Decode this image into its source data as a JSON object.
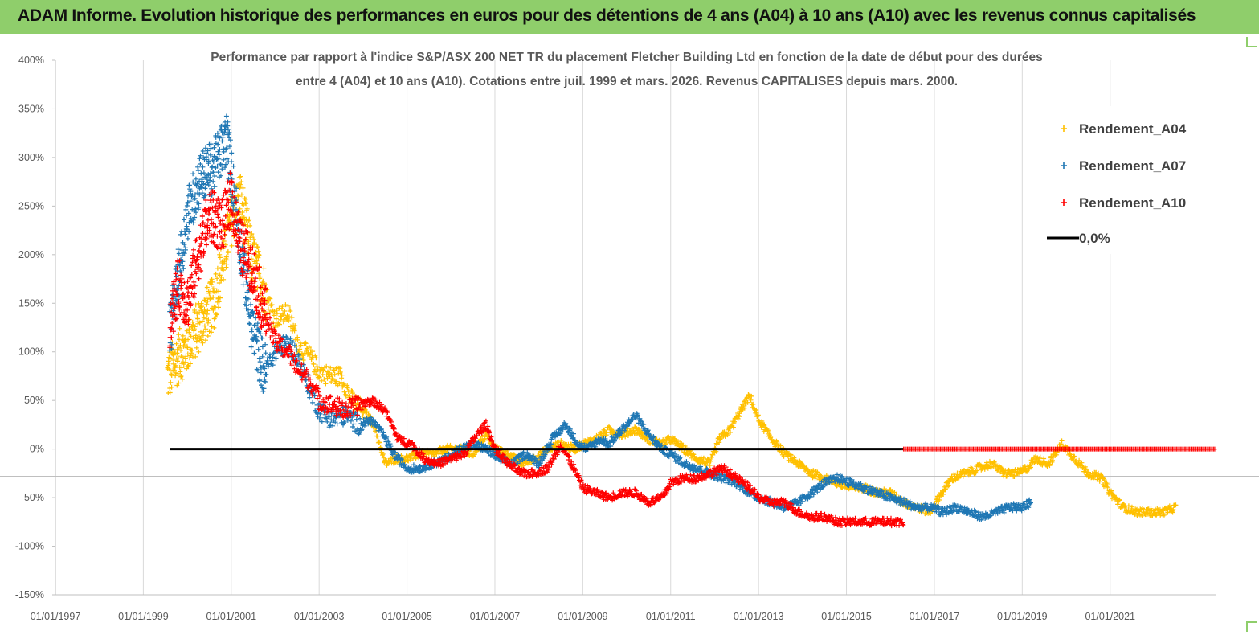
{
  "header": {
    "title": "ADAM Informe. Evolution historique des performances en euros pour des détentions de 4 ans (A04) à 10 ans (A10) avec les revenus connus capitalisés"
  },
  "colors": {
    "banner": "#8fce6b",
    "a04": "#ffc000",
    "a07": "#1f77b4",
    "a10": "#ff0000",
    "zero": "#000000"
  },
  "chart_data": {
    "type": "scatter",
    "title_lines": [
      "Performance par rapport à l'indice S&P/ASX 200 NET TR  du placement Fletcher Building Ltd en fonction de la date de début pour des durées",
      "entre 4 (A04) et 10 ans (A10). Cotations entre juil. 1999 et mars. 2026. Revenus CAPITALISES depuis mars. 2000."
    ],
    "x_ticks": [
      "01/01/1997",
      "01/01/1999",
      "01/01/2001",
      "01/01/2003",
      "01/01/2005",
      "01/01/2007",
      "01/01/2009",
      "01/01/2011",
      "01/01/2013",
      "01/01/2015",
      "01/01/2017",
      "01/01/2019",
      "01/01/2021"
    ],
    "x_range": [
      1997.0,
      2023.4
    ],
    "y_ticks": [
      "400%",
      "350%",
      "300%",
      "250%",
      "200%",
      "150%",
      "100%",
      "50%",
      "0%",
      "-50%",
      "-100%",
      "-150%"
    ],
    "ylim": [
      -150,
      400
    ],
    "legend": [
      {
        "key": "a04",
        "label": "Rendement_A04",
        "marker": "+"
      },
      {
        "key": "a07",
        "label": "Rendement_A07",
        "marker": "+"
      },
      {
        "key": "a10",
        "label": "Rendement_A10",
        "marker": "+"
      },
      {
        "key": "zero",
        "label": "0,0%",
        "marker": "line"
      }
    ],
    "series": [
      {
        "key": "a04",
        "x": [
          1999.55,
          1999.8,
          2000.0,
          2000.3,
          2000.6,
          2000.85,
          2001.0,
          2001.2,
          2001.45,
          2001.7,
          2002.0,
          2002.3,
          2002.55,
          2002.8,
          2003.0,
          2003.25,
          2003.5,
          2003.75,
          2004.0,
          2004.25,
          2004.5,
          2004.75,
          2005.0,
          2005.3,
          2005.6,
          2005.9,
          2006.2,
          2006.5,
          2006.8,
          2007.0,
          2007.3,
          2007.6,
          2007.9,
          2008.2,
          2008.5,
          2008.8,
          2009.0,
          2009.3,
          2009.6,
          2009.9,
          2010.2,
          2010.5,
          2010.8,
          2011.0,
          2011.3,
          2011.6,
          2011.9,
          2012.1,
          2012.35,
          2012.6,
          2012.8,
          2013.0,
          2013.3,
          2013.6,
          2013.9,
          2014.2,
          2014.5,
          2014.8,
          2015.1,
          2015.4,
          2015.7,
          2016.0,
          2016.3,
          2016.6,
          2016.9,
          2017.1,
          2017.4,
          2017.7,
          2018.0,
          2018.3,
          2018.6,
          2018.9,
          2019.1,
          2019.3,
          2019.6,
          2019.9,
          2020.2,
          2020.5,
          2020.8,
          2021.0,
          2021.3,
          2021.6,
          2021.9,
          2022.2,
          2022.5
        ],
        "y": [
          75,
          95,
          105,
          130,
          150,
          200,
          235,
          260,
          200,
          170,
          135,
          140,
          105,
          95,
          80,
          75,
          75,
          50,
          40,
          25,
          -15,
          -10,
          -10,
          -5,
          -5,
          0,
          0,
          -5,
          15,
          0,
          -5,
          -15,
          -10,
          0,
          5,
          0,
          5,
          10,
          20,
          15,
          20,
          10,
          5,
          10,
          0,
          -10,
          -15,
          10,
          20,
          40,
          55,
          30,
          10,
          -5,
          -15,
          -25,
          -30,
          -35,
          -40,
          -40,
          -45,
          -45,
          -55,
          -60,
          -65,
          -50,
          -30,
          -25,
          -20,
          -15,
          -25,
          -25,
          -20,
          -10,
          -15,
          5,
          -10,
          -25,
          -30,
          -45,
          -60,
          -65,
          -65,
          -65,
          -60
        ]
      },
      {
        "key": "a07",
        "x": [
          1999.6,
          1999.8,
          2000.0,
          2000.3,
          2000.6,
          2000.9,
          2001.1,
          2001.3,
          2001.5,
          2001.75,
          2002.0,
          2002.3,
          2002.55,
          2002.8,
          2003.0,
          2003.3,
          2003.6,
          2003.9,
          2004.2,
          2004.45,
          2004.7,
          2005.0,
          2005.3,
          2005.6,
          2005.9,
          2006.2,
          2006.5,
          2006.8,
          2007.1,
          2007.4,
          2007.7,
          2008.0,
          2008.3,
          2008.6,
          2008.9,
          2009.1,
          2009.4,
          2009.6,
          2009.9,
          2010.2,
          2010.5,
          2010.8,
          2011.0,
          2011.3,
          2011.6,
          2011.9,
          2012.2,
          2012.5,
          2012.8,
          2013.0,
          2013.3,
          2013.6,
          2013.9,
          2014.2,
          2014.5,
          2014.8,
          2015.1,
          2015.4,
          2015.7,
          2016.0,
          2016.3,
          2016.6,
          2016.9,
          2017.2,
          2017.5,
          2017.8,
          2018.1,
          2018.4,
          2018.7,
          2019.0,
          2019.2
        ],
        "y": [
          120,
          180,
          240,
          280,
          290,
          320,
          250,
          180,
          120,
          80,
          100,
          110,
          90,
          60,
          40,
          30,
          35,
          25,
          30,
          15,
          -5,
          -20,
          -20,
          -15,
          -10,
          0,
          5,
          0,
          -10,
          -15,
          -5,
          -15,
          10,
          25,
          5,
          0,
          10,
          5,
          20,
          35,
          15,
          0,
          -5,
          -15,
          -20,
          -25,
          -30,
          -35,
          -45,
          -50,
          -55,
          -60,
          -55,
          -45,
          -35,
          -30,
          -35,
          -40,
          -45,
          -50,
          -55,
          -60,
          -60,
          -65,
          -60,
          -65,
          -70,
          -65,
          -60,
          -60,
          -55
        ]
      },
      {
        "key": "a10",
        "x": [
          1999.6,
          1999.8,
          2000.0,
          2000.3,
          2000.5,
          2000.8,
          2001.0,
          2001.2,
          2001.45,
          2001.7,
          2002.0,
          2002.3,
          2002.55,
          2002.8,
          2003.0,
          2003.3,
          2003.6,
          2003.9,
          2004.2,
          2004.5,
          2004.8,
          2005.1,
          2005.4,
          2005.7,
          2006.0,
          2006.3,
          2006.6,
          2006.8,
          2007.0,
          2007.3,
          2007.6,
          2007.9,
          2008.2,
          2008.5,
          2008.8,
          2009.0,
          2009.3,
          2009.6,
          2009.9,
          2010.2,
          2010.5,
          2010.8,
          2011.0,
          2011.3,
          2011.6,
          2011.9,
          2012.2,
          2012.5,
          2012.8,
          2013.0,
          2013.3,
          2013.6,
          2013.9,
          2014.2,
          2014.5,
          2014.8,
          2015.1,
          2015.4,
          2015.7,
          2016.0,
          2016.3
        ],
        "y": [
          130,
          170,
          150,
          210,
          240,
          230,
          260,
          210,
          190,
          150,
          110,
          100,
          80,
          70,
          50,
          45,
          40,
          45,
          50,
          40,
          10,
          5,
          -10,
          -15,
          -10,
          -5,
          15,
          25,
          0,
          -15,
          -25,
          -25,
          -20,
          5,
          -20,
          -40,
          -45,
          -50,
          -45,
          -45,
          -55,
          -50,
          -35,
          -30,
          -30,
          -25,
          -20,
          -30,
          -40,
          -50,
          -55,
          -55,
          -65,
          -70,
          -70,
          -75,
          -75,
          -75,
          -75,
          -75,
          -75
        ]
      },
      {
        "key": "zero",
        "x": [
          1999.6,
          2023.4
        ],
        "y": [
          0,
          0
        ]
      }
    ]
  }
}
